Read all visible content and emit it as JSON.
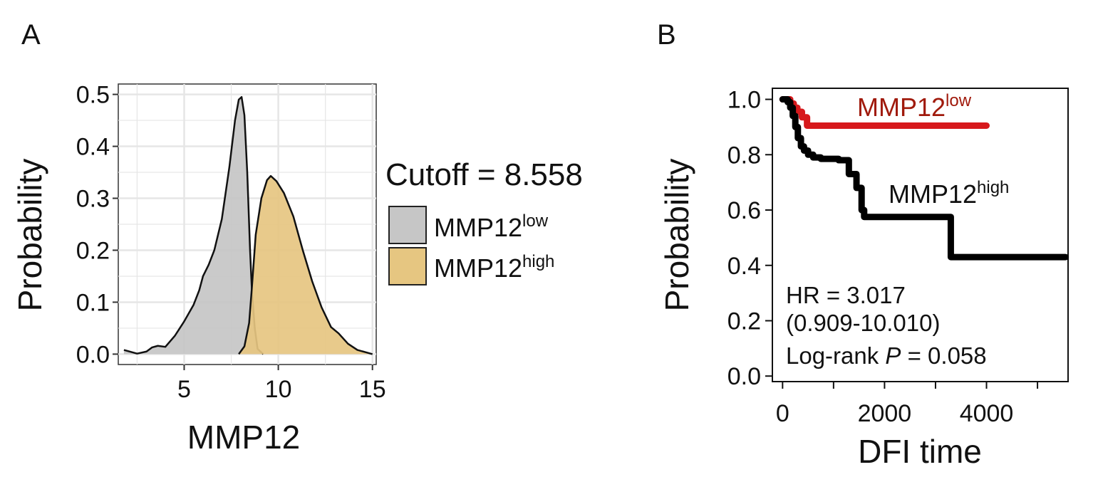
{
  "panels": {
    "A": {
      "letter": "A"
    },
    "B": {
      "letter": "B"
    }
  },
  "chart_data": [
    {
      "type": "area",
      "panel": "A",
      "xlabel": "MMP12",
      "ylabel": "Probability",
      "xlim": [
        1.5,
        15.2
      ],
      "ylim": [
        -0.02,
        0.52
      ],
      "x_ticks": [
        5,
        10,
        15
      ],
      "y_ticks": [
        0.0,
        0.1,
        0.2,
        0.3,
        0.4,
        0.5
      ],
      "y_tick_labels": [
        "0.0",
        "0.1",
        "0.2",
        "0.3",
        "0.4",
        "0.5"
      ],
      "grid": true,
      "legend": {
        "title": "Cutoff = 8.558",
        "placement": "right",
        "entries": [
          {
            "base": "MMP12",
            "sup": "low",
            "color": "#c6c6c6"
          },
          {
            "base": "MMP12",
            "sup": "high",
            "color": "#e6c681"
          }
        ]
      },
      "series": [
        {
          "name": "MMP12low",
          "color": "#c6c6c6",
          "x": [
            1.8,
            2.5,
            3.0,
            3.3,
            3.6,
            4.0,
            4.5,
            5.0,
            5.5,
            5.8,
            6.0,
            6.3,
            6.6,
            7.0,
            7.4,
            7.7,
            7.9,
            8.05,
            8.2,
            8.35,
            8.5,
            8.6,
            8.75,
            8.9,
            9.2
          ],
          "values": [
            0.008,
            0.001,
            0.005,
            0.013,
            0.016,
            0.014,
            0.035,
            0.063,
            0.095,
            0.123,
            0.15,
            0.172,
            0.2,
            0.26,
            0.36,
            0.45,
            0.49,
            0.495,
            0.46,
            0.35,
            0.2,
            0.12,
            0.05,
            0.01,
            0.0
          ]
        },
        {
          "name": "MMP12high",
          "color": "#e6c681",
          "x": [
            7.9,
            8.2,
            8.45,
            8.6,
            8.8,
            9.1,
            9.4,
            9.6,
            9.9,
            10.3,
            10.8,
            11.3,
            11.8,
            12.3,
            12.8,
            13.2,
            13.7,
            14.2,
            14.7,
            15.0
          ],
          "values": [
            0.0,
            0.015,
            0.06,
            0.13,
            0.23,
            0.3,
            0.335,
            0.343,
            0.333,
            0.31,
            0.265,
            0.2,
            0.14,
            0.09,
            0.052,
            0.04,
            0.02,
            0.008,
            0.003,
            0.0
          ]
        }
      ]
    },
    {
      "type": "line",
      "panel": "B",
      "xlabel": "DFI time",
      "ylabel": "Probability",
      "xlim": [
        -200,
        5600
      ],
      "ylim": [
        -0.02,
        1.04
      ],
      "x_ticks": [
        0,
        2000,
        4000
      ],
      "x_minor_ticks": [
        1000,
        3000,
        5000
      ],
      "y_ticks": [
        0.0,
        0.2,
        0.4,
        0.6,
        0.8,
        1.0
      ],
      "y_tick_labels": [
        "0.0",
        "0.2",
        "0.4",
        "0.6",
        "0.8",
        "1.0"
      ],
      "grid": false,
      "series": [
        {
          "name": "MMP12low",
          "label_base": "MMP12",
          "label_sup": "low",
          "color": "#d7191c",
          "label_color": "#a01a0c",
          "x": [
            0,
            120,
            150,
            220,
            290,
            380,
            480,
            4000
          ],
          "values": [
            1.0,
            1.0,
            0.985,
            0.97,
            0.955,
            0.935,
            0.905,
            0.905
          ]
        },
        {
          "name": "MMP12high",
          "label_base": "MMP12",
          "label_sup": "high",
          "color": "#000000",
          "label_color": "#111111",
          "x": [
            0,
            100,
            150,
            200,
            250,
            300,
            360,
            420,
            500,
            600,
            750,
            900,
            1100,
            1300,
            1450,
            1550,
            1600,
            3250,
            3300,
            5550
          ],
          "values": [
            1.0,
            0.99,
            0.97,
            0.94,
            0.9,
            0.86,
            0.83,
            0.815,
            0.8,
            0.79,
            0.785,
            0.785,
            0.78,
            0.73,
            0.68,
            0.6,
            0.575,
            0.575,
            0.43,
            0.43
          ]
        }
      ],
      "annotations": {
        "hr": "HR = 3.017",
        "ci": "(0.909-10.010)",
        "logrank_prefix": "Log-rank ",
        "logrank_p": "P",
        "logrank_suffix": " = 0.058"
      }
    }
  ]
}
